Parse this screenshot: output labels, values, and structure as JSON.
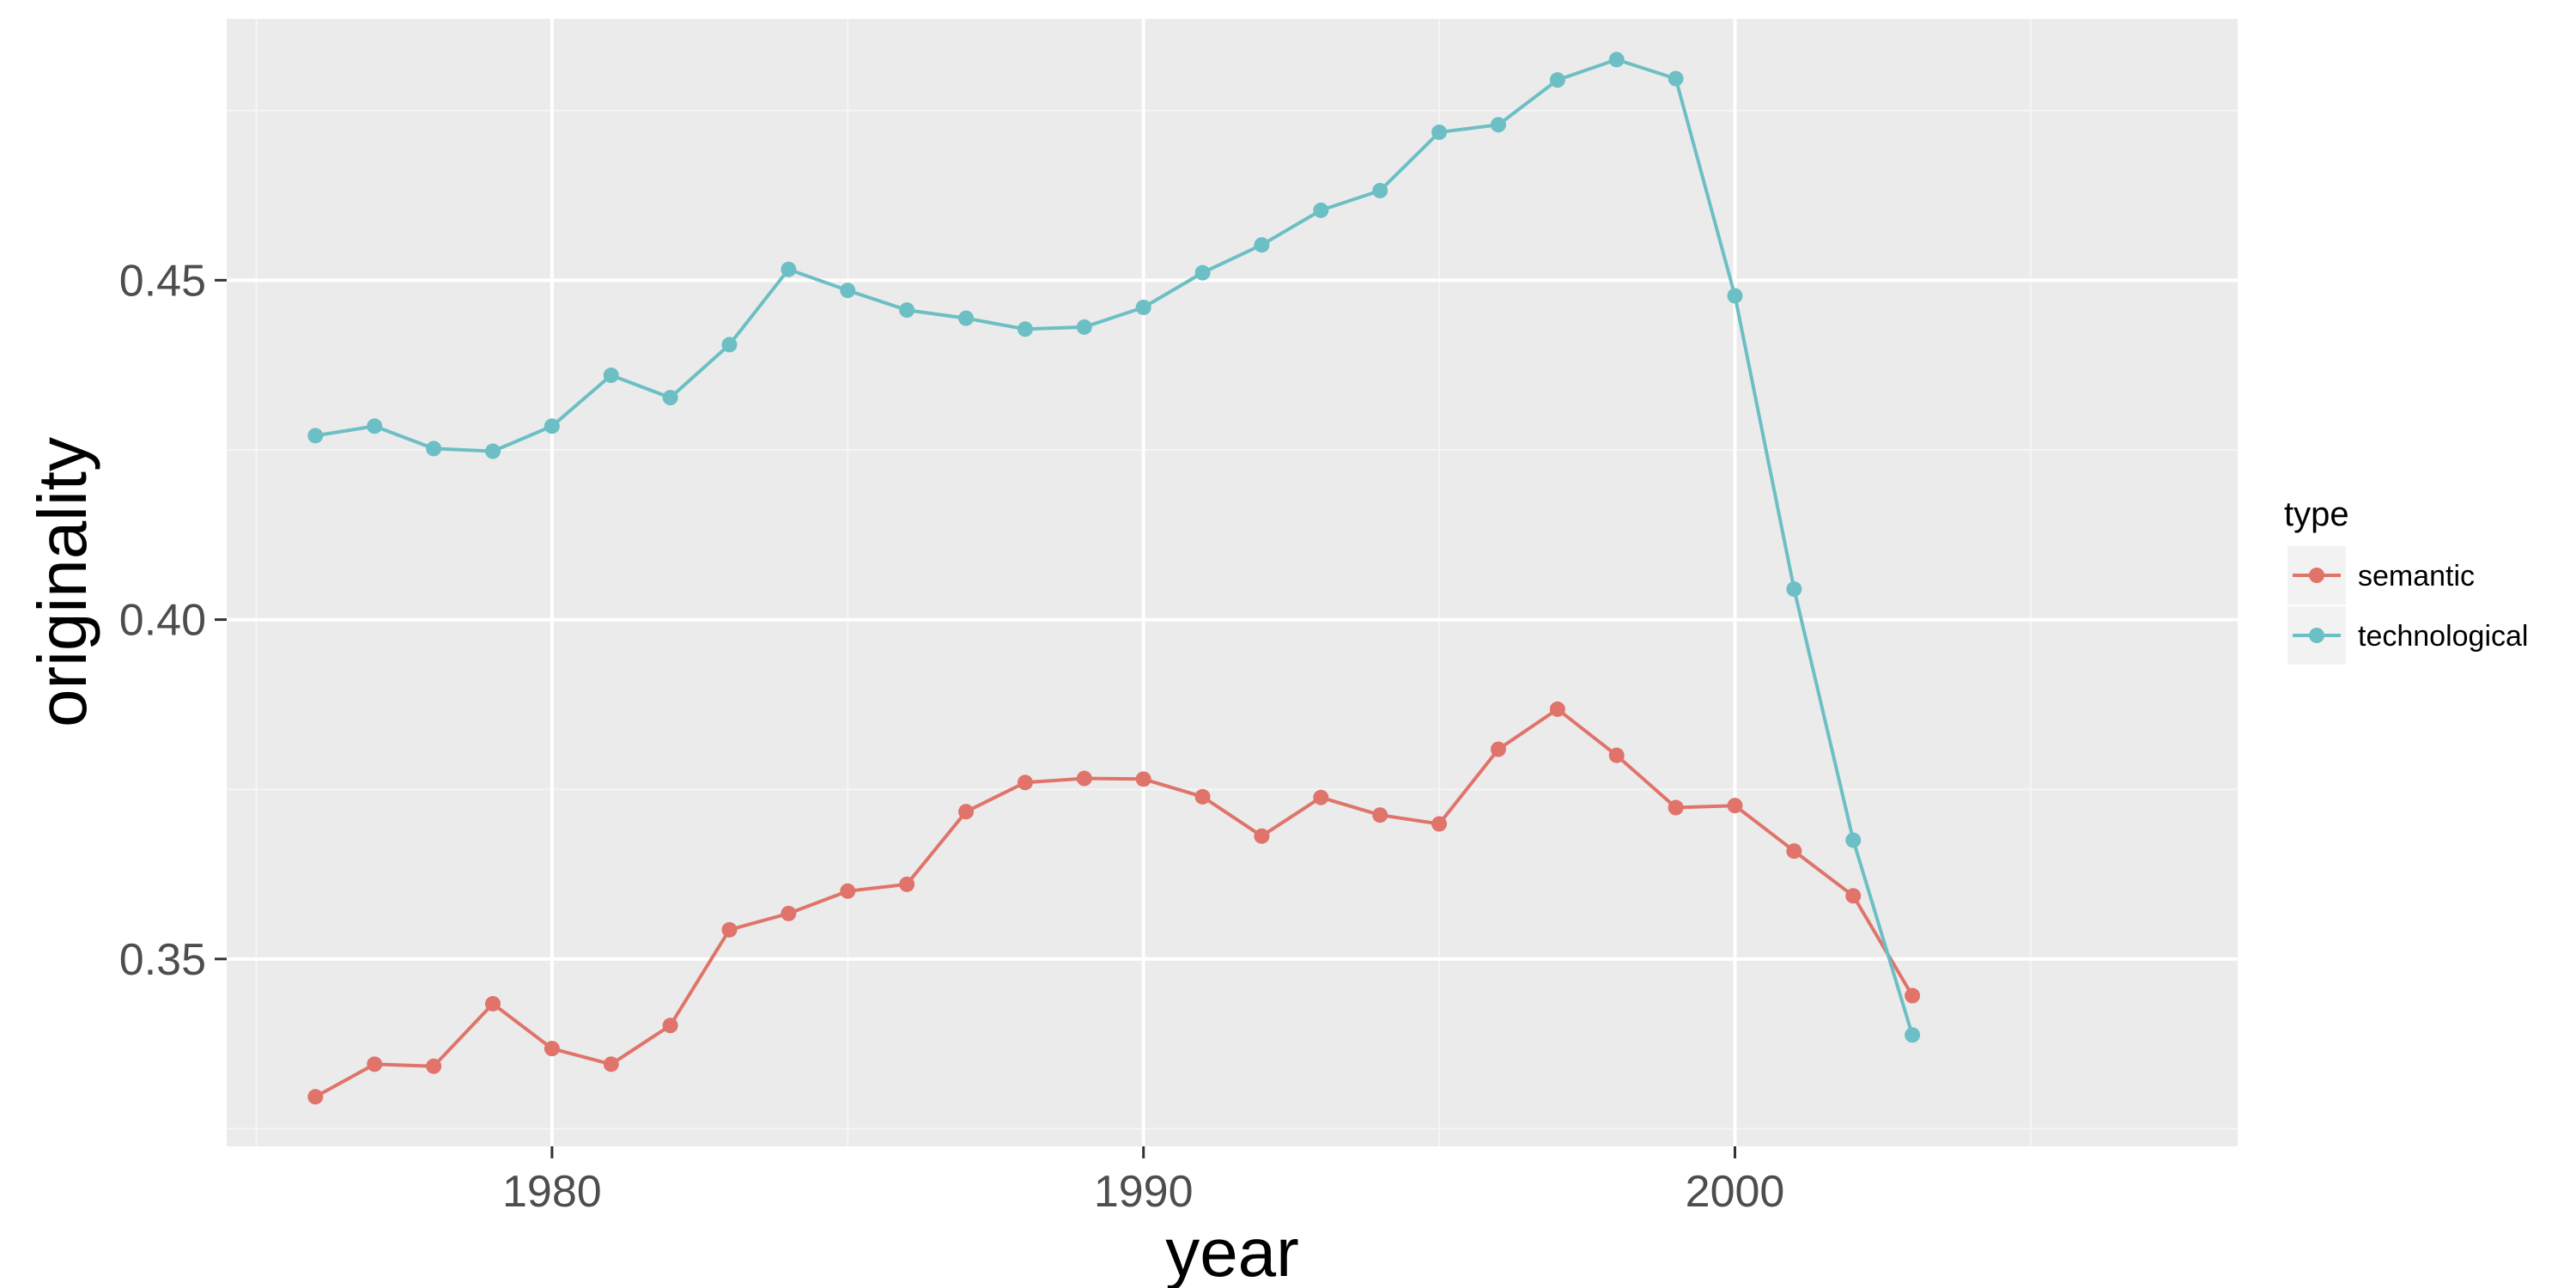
{
  "chart_data": {
    "type": "line",
    "title": "",
    "xlabel": "year",
    "ylabel": "originality",
    "xlim": [
      1974.5,
      2008.5
    ],
    "ylim": [
      0.3224,
      0.4885
    ],
    "x_ticks": [
      1980,
      1990,
      2000
    ],
    "x_tick_labels": [
      "1980",
      "1990",
      "2000"
    ],
    "y_ticks": [
      0.35,
      0.4,
      0.45
    ],
    "y_tick_labels": [
      "0.35",
      "0.40",
      "0.45"
    ],
    "grid": true,
    "legend": {
      "title": "type",
      "position": "right"
    },
    "x": [
      1976,
      1977,
      1978,
      1979,
      1980,
      1981,
      1982,
      1983,
      1984,
      1985,
      1986,
      1987,
      1988,
      1989,
      1990,
      1991,
      1992,
      1993,
      1994,
      1995,
      1996,
      1997,
      1998,
      1999,
      2000,
      2001,
      2002,
      2003
    ],
    "series": [
      {
        "name": "semantic",
        "color": "#e0736a",
        "values": [
          0.3297,
          0.3345,
          0.3342,
          0.3434,
          0.3368,
          0.3345,
          0.3402,
          0.3543,
          0.3567,
          0.36,
          0.361,
          0.3717,
          0.376,
          0.3766,
          0.3765,
          0.3739,
          0.3681,
          0.3738,
          0.3712,
          0.3699,
          0.3809,
          0.3868,
          0.38,
          0.3723,
          0.3726,
          0.3659,
          0.3593,
          0.3446
        ]
      },
      {
        "name": "technological",
        "color": "#6cbfc4",
        "values": [
          0.4271,
          0.4285,
          0.4252,
          0.4248,
          0.4285,
          0.436,
          0.4327,
          0.4405,
          0.4516,
          0.4485,
          0.4456,
          0.4444,
          0.4428,
          0.4431,
          0.446,
          0.4511,
          0.4552,
          0.4603,
          0.4632,
          0.4718,
          0.4729,
          0.4795,
          0.4825,
          0.4797,
          0.4477,
          0.4045,
          0.3675,
          0.3388
        ]
      }
    ]
  }
}
